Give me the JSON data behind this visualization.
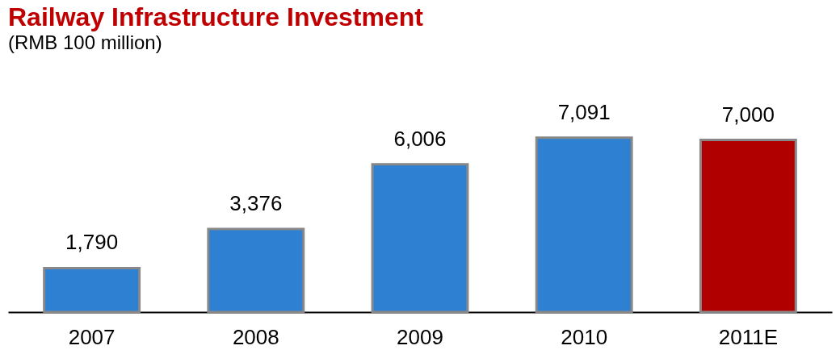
{
  "chart_data": {
    "type": "bar",
    "title": "Railway Infrastructure Investment",
    "subtitle": "(RMB 100 million)",
    "categories": [
      "2007",
      "2008",
      "2009",
      "2010",
      "2011E"
    ],
    "values": [
      1790,
      3376,
      6006,
      7091,
      7000
    ],
    "colors": [
      "#2d80d2",
      "#2d80d2",
      "#2d80d2",
      "#2d80d2",
      "#b00000"
    ],
    "value_labels": [
      "1,790",
      "3,376",
      "6,006",
      "7,091",
      "7,000"
    ],
    "grid": false
  }
}
